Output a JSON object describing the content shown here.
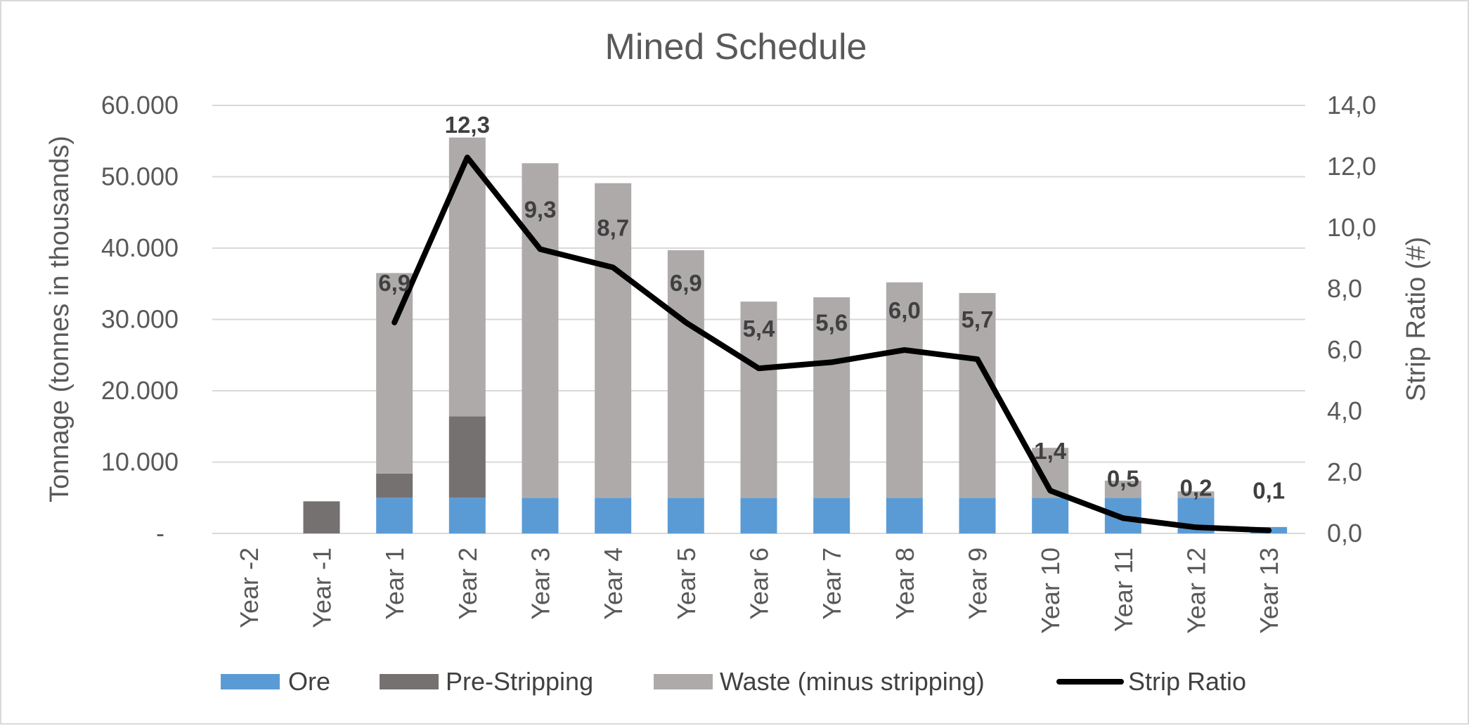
{
  "chart_data": {
    "type": "bar",
    "title": "Mined Schedule",
    "categories": [
      "Year -2",
      "Year -1",
      "Year 1",
      "Year 2",
      "Year 3",
      "Year 4",
      "Year 5",
      "Year 6",
      "Year 7",
      "Year 8",
      "Year 9",
      "Year 10",
      "Year 11",
      "Year 12",
      "Year 13"
    ],
    "series": [
      {
        "name": "Ore",
        "kind": "bar",
        "color": "#5b9bd5",
        "values": [
          0,
          0,
          5000,
          5000,
          5000,
          5000,
          5000,
          5000,
          5000,
          5000,
          5000,
          5000,
          5000,
          5000,
          900
        ]
      },
      {
        "name": "Pre-Stripping",
        "kind": "bar",
        "color": "#767171",
        "values": [
          0,
          4500,
          3400,
          11400,
          0,
          0,
          0,
          0,
          0,
          0,
          0,
          0,
          0,
          0,
          0
        ]
      },
      {
        "name": "Waste (minus stripping)",
        "kind": "bar",
        "color": "#aeaaaa",
        "values": [
          0,
          0,
          28100,
          39100,
          46900,
          44100,
          34700,
          27500,
          28100,
          30200,
          28700,
          7000,
          2400,
          900,
          0
        ]
      },
      {
        "name": "Strip Ratio",
        "kind": "line",
        "axis": "right",
        "color": "#000000",
        "values": [
          null,
          null,
          6.9,
          12.3,
          9.3,
          8.7,
          6.9,
          5.4,
          5.6,
          6.0,
          5.7,
          1.4,
          0.5,
          0.2,
          0.1
        ],
        "labels": [
          "",
          "",
          "6,9",
          "12,3",
          "9,3",
          "8,7",
          "6,9",
          "5,4",
          "5,6",
          "6,0",
          "5,7",
          "1,4",
          "0,5",
          "0,2",
          "0,1"
        ]
      }
    ],
    "ylabel": "Tonnage (tonnes in thousands)",
    "ylim": [
      0,
      60000
    ],
    "yticks": [
      "-",
      "10.000",
      "20.000",
      "30.000",
      "40.000",
      "50.000",
      "60.000"
    ],
    "y2label": "Strip Ratio (#)",
    "y2lim": [
      0,
      14
    ],
    "y2ticks": [
      "0,0",
      "2,0",
      "4,0",
      "6,0",
      "8,0",
      "10,0",
      "12,0",
      "14,0"
    ],
    "grid": true,
    "legend_position": "bottom"
  }
}
